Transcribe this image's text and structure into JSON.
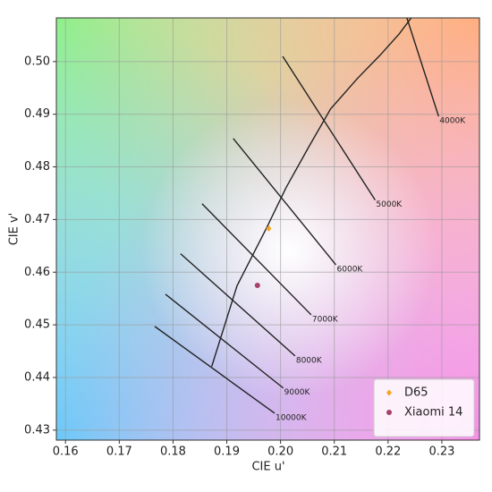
{
  "chart_data": {
    "type": "scatter",
    "xlabel": "CIE u'",
    "ylabel": "CIE v'",
    "xlim": [
      0.1583,
      0.237
    ],
    "ylim": [
      0.4281,
      0.5083
    ],
    "xticks": [
      0.16,
      0.17,
      0.18,
      0.19,
      {
        "value": 0.2,
        "label": "0.20"
      },
      0.21,
      0.22,
      0.23
    ],
    "yticks": [
      0.43,
      0.44,
      0.45,
      0.46,
      0.47,
      0.48,
      0.49,
      {
        "value": 0.5,
        "label": "0.50"
      }
    ],
    "grid": true,
    "legend": "lower right",
    "locus": {
      "color": "#222222",
      "x": [
        0.1872,
        0.1919,
        0.1974,
        0.201,
        0.2052,
        0.2093,
        0.2143,
        0.2185,
        0.2221,
        0.2243
      ],
      "y": [
        0.4421,
        0.4574,
        0.4684,
        0.476,
        0.4837,
        0.491,
        0.4968,
        0.5012,
        0.5053,
        0.5083
      ]
    },
    "isotherms": [
      {
        "label": "4000K",
        "x": [
          0.2235,
          0.2294
        ],
        "y": [
          0.5083,
          0.4896
        ]
      },
      {
        "label": "5000K",
        "x": [
          0.2004,
          0.2176
        ],
        "y": [
          0.501,
          0.4737
        ]
      },
      {
        "label": "6000K",
        "x": [
          0.1912,
          0.2103
        ],
        "y": [
          0.4854,
          0.4614
        ]
      },
      {
        "label": "7000K",
        "x": [
          0.1854,
          0.2057
        ],
        "y": [
          0.473,
          0.4519
        ]
      },
      {
        "label": "8000K",
        "x": [
          0.1814,
          0.2027
        ],
        "y": [
          0.4635,
          0.4441
        ]
      },
      {
        "label": "9000K",
        "x": [
          0.1786,
          0.2005
        ],
        "y": [
          0.4558,
          0.438
        ]
      },
      {
        "label": "10000K",
        "x": [
          0.1766,
          0.1989
        ],
        "y": [
          0.4497,
          0.4332
        ]
      }
    ],
    "series": [
      {
        "name": "D65",
        "color": "#f5a623",
        "marker": "diamond",
        "x": [
          0.1978
        ],
        "y": [
          0.4683
        ]
      },
      {
        "name": "Xiaomi 14",
        "color": "#a8406c",
        "marker": "circle",
        "x": [
          0.1957
        ],
        "y": [
          0.4575
        ]
      }
    ]
  }
}
